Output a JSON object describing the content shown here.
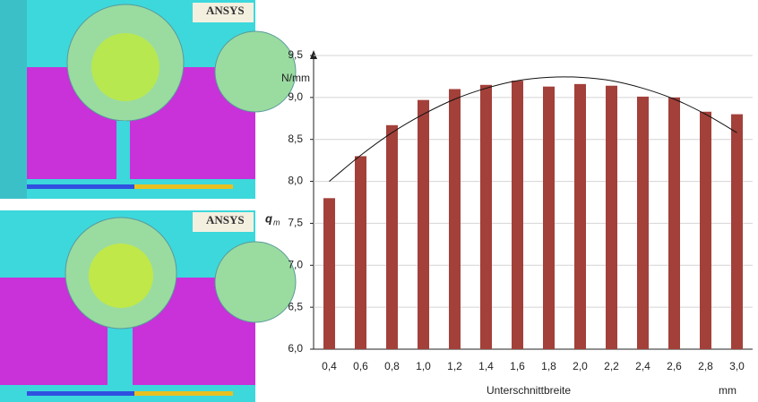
{
  "images": [
    {
      "logo": "ANSYS"
    },
    {
      "logo": "ANSYS"
    }
  ],
  "chart_data": {
    "type": "bar",
    "y_label": "q",
    "y_label_sub": "m",
    "y_unit": "N/mm",
    "x_label": "Unterschnittbreite",
    "x_unit": "mm",
    "categories": [
      "0,4",
      "0,6",
      "0,8",
      "1,0",
      "1,2",
      "1,4",
      "1,6",
      "1,8",
      "2,0",
      "2,2",
      "2,4",
      "2,6",
      "2,8",
      "3,0"
    ],
    "values": [
      7.8,
      8.3,
      8.67,
      8.97,
      9.1,
      9.15,
      9.2,
      9.13,
      9.16,
      9.14,
      9.01,
      9.0,
      8.83,
      8.8
    ],
    "color": "#a3403a",
    "trend_values": [
      8.0,
      8.31,
      8.58,
      8.8,
      8.98,
      9.11,
      9.2,
      9.24,
      9.24,
      9.2,
      9.11,
      8.98,
      8.8,
      8.58
    ],
    "trend_color": "#111111",
    "ylim": [
      6,
      9.5
    ],
    "yticks": [
      {
        "value": 6,
        "label": "6,0"
      },
      {
        "value": 6.5,
        "label": "6,5"
      },
      {
        "value": 7,
        "label": "7,0"
      },
      {
        "value": 7.5,
        "label": "7,5"
      },
      {
        "value": 8,
        "label": "8,0"
      },
      {
        "value": 8.5,
        "label": "8,5"
      },
      {
        "value": 9,
        "label": "9,0"
      },
      {
        "value": 9.5,
        "label": "9,5"
      }
    ],
    "grid": true
  }
}
